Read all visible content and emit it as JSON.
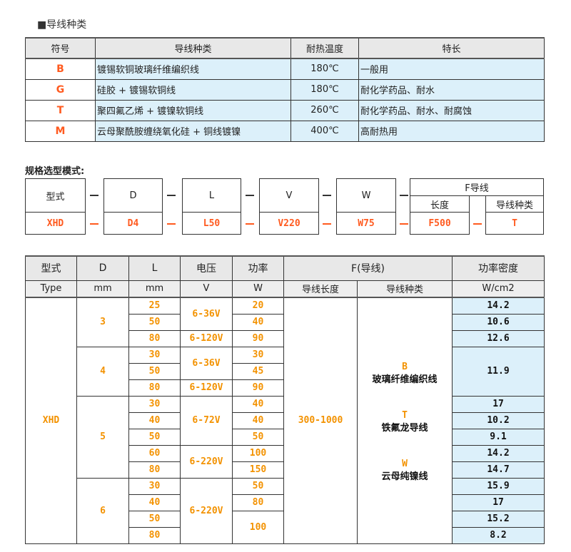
{
  "wire_types": {
    "title": "■导线种类",
    "headers": [
      "符号",
      "导线种类",
      "耐热温度",
      "特长"
    ],
    "rows": [
      [
        "B",
        "镀锡软铜玻璃纤维编织线",
        "180℃",
        "一般用"
      ],
      [
        "G",
        "硅胶 + 镀锡软铜线",
        "180℃",
        "耐化学药品、耐水"
      ],
      [
        "T",
        "聚四氟乙烯 + 镀镍软铜线",
        "260℃",
        "耐化学药品、耐水、耐腐蚀"
      ],
      [
        "M",
        "云母聚酰胺缠绕氧化硅 + 铜线镀镍",
        "400℃",
        "高耐热用"
      ]
    ]
  },
  "spec": {
    "title": "规格选型模式:",
    "labels": [
      "型式",
      "D",
      "L",
      "V",
      "W"
    ],
    "f_label": "F导线",
    "f_sub": [
      "长度",
      "导线种类"
    ],
    "values": [
      "XHD",
      "D4",
      "L50",
      "V220",
      "W75",
      "F500",
      "T"
    ],
    "dash": "—"
  },
  "spec_table": {
    "headers": [
      "型式",
      "D",
      "L",
      "电压",
      "功率",
      "F(导线)",
      "功率密度"
    ],
    "units": [
      "Type",
      "mm",
      "mm",
      "V",
      "W",
      "导线长度",
      "导线种类",
      "W/cm2"
    ],
    "type": "XHD",
    "lead_length": "300-1000",
    "diameters": [
      {
        "d": "3",
        "rows": 3
      },
      {
        "d": "4",
        "rows": 3
      },
      {
        "d": "5",
        "rows": 5
      },
      {
        "d": "6",
        "rows": 4
      }
    ],
    "lengths": [
      "25",
      "50",
      "80",
      "30",
      "50",
      "80",
      "30",
      "40",
      "50",
      "60",
      "80",
      "30",
      "40",
      "50",
      "80"
    ],
    "voltages": [
      {
        "v": "6-36V",
        "rows": 2
      },
      {
        "v": "6-120V",
        "rows": 1
      },
      {
        "v": "6-36V",
        "rows": 2
      },
      {
        "v": "6-120V",
        "rows": 1
      },
      {
        "v": "6-72V",
        "rows": 3
      },
      {
        "v": "6-220V",
        "rows": 2
      },
      {
        "v": "6-220V",
        "rows": 4
      }
    ],
    "powers": [
      {
        "w": "20",
        "rows": 1
      },
      {
        "w": "40",
        "rows": 1
      },
      {
        "w": "90",
        "rows": 1
      },
      {
        "w": "30",
        "rows": 1
      },
      {
        "w": "45",
        "rows": 1
      },
      {
        "w": "90",
        "rows": 1
      },
      {
        "w": "40",
        "rows": 1
      },
      {
        "w": "40",
        "rows": 1
      },
      {
        "w": "50",
        "rows": 1
      },
      {
        "w": "100",
        "rows": 1
      },
      {
        "w": "150",
        "rows": 1
      },
      {
        "w": "50",
        "rows": 1
      },
      {
        "w": "80",
        "rows": 1
      },
      {
        "w": "100",
        "rows": 2
      }
    ],
    "densities": [
      {
        "v": "14.2",
        "rows": 1
      },
      {
        "v": "10.6",
        "rows": 1
      },
      {
        "v": "12.6",
        "rows": 1
      },
      {
        "v": "11.9",
        "rows": 3
      },
      {
        "v": "17",
        "rows": 1
      },
      {
        "v": "10.2",
        "rows": 1
      },
      {
        "v": "9.1",
        "rows": 1
      },
      {
        "v": "14.2",
        "rows": 1
      },
      {
        "v": "14.7",
        "rows": 1
      },
      {
        "v": "15.9",
        "rows": 1
      },
      {
        "v": "17",
        "rows": 1
      },
      {
        "v": "15.2",
        "rows": 1
      },
      {
        "v": "8.2",
        "rows": 1
      }
    ],
    "wire_options": [
      {
        "code": "B",
        "name": "玻璃纤维编织线"
      },
      {
        "code": "T",
        "name": "铁氟龙导线"
      },
      {
        "code": "W",
        "name": "云母纯镍线"
      }
    ]
  },
  "colors": {
    "accent_red": "#ff5a1f",
    "accent_orange": "#f39200",
    "cell_blue": "#dcf0fa",
    "header_gray": "#e8e8e8"
  }
}
